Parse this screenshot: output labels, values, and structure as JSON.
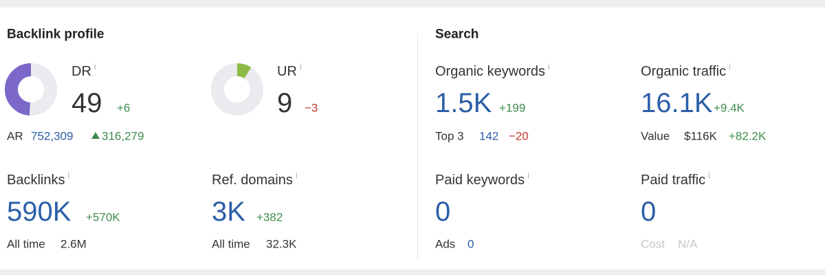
{
  "backlink_profile": {
    "title": "Backlink profile",
    "dr": {
      "label": "DR",
      "info": "i",
      "value": "49",
      "change": "+6"
    },
    "ur": {
      "label": "UR",
      "info": "i",
      "value": "9",
      "change": "−3"
    },
    "ar": {
      "label": "AR",
      "value": "752,309",
      "change": "316,279"
    },
    "backlinks": {
      "label": "Backlinks",
      "info": "i",
      "value": "590K",
      "change": "+570K",
      "sub_label": "All time",
      "sub_value": "2.6M"
    },
    "ref_domains": {
      "label": "Ref. domains",
      "info": "i",
      "value": "3K",
      "change": "+382",
      "sub_label": "All time",
      "sub_value": "32.3K"
    }
  },
  "search": {
    "title": "Search",
    "organic_keywords": {
      "label": "Organic keywords",
      "info": "i",
      "value": "1.5K",
      "change": "+199",
      "sub_label": "Top 3",
      "sub_value": "142",
      "sub_change": "−20"
    },
    "organic_traffic": {
      "label": "Organic traffic",
      "info": "i",
      "value": "16.1K",
      "change": "+9.4K",
      "sub_label": "Value",
      "sub_value": "$116K",
      "sub_change": "+82.2K"
    },
    "paid_keywords": {
      "label": "Paid keywords",
      "info": "i",
      "value": "0",
      "sub_label": "Ads",
      "sub_value": "0"
    },
    "paid_traffic": {
      "label": "Paid traffic",
      "info": "i",
      "value": "0",
      "sub_label": "Cost",
      "sub_value": "N/A"
    }
  }
}
